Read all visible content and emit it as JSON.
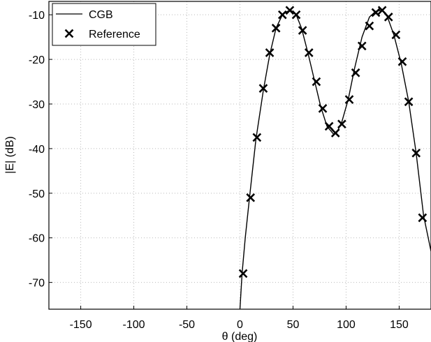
{
  "chart_data": {
    "type": "line",
    "xlabel": "θ (deg)",
    "ylabel": "|E| (dB)",
    "xlim": [
      -180,
      180
    ],
    "ylim": [
      -76,
      -7
    ],
    "xticks": [
      -150,
      -100,
      -50,
      0,
      50,
      100,
      150
    ],
    "yticks": [
      -10,
      -20,
      -30,
      -40,
      -50,
      -60,
      -70
    ],
    "xtick_labels": [
      "-150",
      "-100",
      "-50",
      "0",
      "50",
      "100",
      "150"
    ],
    "ytick_labels": [
      "-10",
      "-20",
      "-30",
      "-40",
      "-50",
      "-60",
      "-70"
    ],
    "grid": true,
    "legend_position": "top-left",
    "series": [
      {
        "name": "CGB",
        "style": "line",
        "color": "#000000",
        "x": [
          0,
          2,
          5,
          9,
          15,
          22,
          28,
          34,
          40,
          45,
          48,
          53,
          58,
          64,
          70,
          76,
          82,
          88,
          91,
          96,
          102,
          108,
          115,
          122,
          128,
          134,
          139,
          145,
          152,
          159,
          166,
          173,
          180
        ],
        "y": [
          -76,
          -68,
          -60,
          -51,
          -38,
          -27,
          -19,
          -13,
          -10,
          -9.2,
          -9,
          -10,
          -13,
          -18.5,
          -24.5,
          -30.5,
          -35,
          -36.7,
          -36.5,
          -34,
          -29,
          -22,
          -15,
          -10.5,
          -9.2,
          -9,
          -10.5,
          -14.5,
          -21,
          -29.5,
          -41,
          -55,
          -63
        ]
      },
      {
        "name": "Reference",
        "style": "marker",
        "marker": "x",
        "color": "#000000",
        "x": [
          3,
          10,
          16,
          22,
          28,
          34,
          40,
          47,
          53,
          59,
          65,
          72,
          78,
          84,
          90,
          96,
          103,
          109,
          115,
          122,
          128,
          134,
          140,
          147,
          153,
          159,
          166,
          172
        ],
        "y": [
          -68,
          -51,
          -37.5,
          -26.5,
          -18.5,
          -13,
          -10,
          -9,
          -10,
          -13.5,
          -18.5,
          -25,
          -31,
          -35,
          -36.5,
          -34.5,
          -29,
          -23,
          -17,
          -12.5,
          -9.5,
          -9,
          -10.5,
          -14.5,
          -20.5,
          -29.5,
          -41,
          -55.5
        ]
      }
    ]
  }
}
